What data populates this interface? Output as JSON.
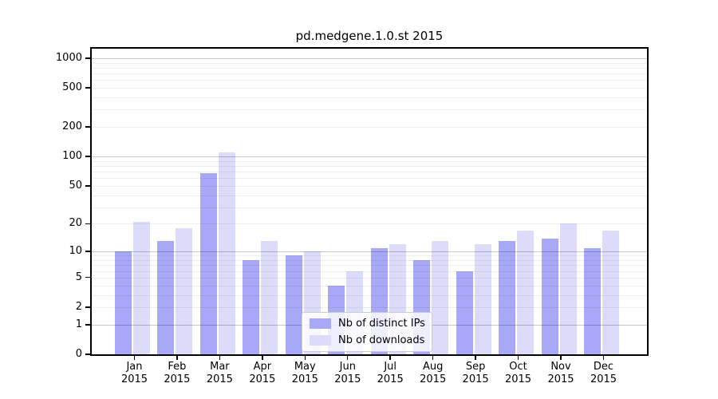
{
  "title": "pd.medgene.1.0.st 2015",
  "chart_data": {
    "type": "bar",
    "title": "pd.medgene.1.0.st 2015",
    "x_year": "2015",
    "x_months": [
      "Jan",
      "Feb",
      "Mar",
      "Apr",
      "May",
      "Jun",
      "Jul",
      "Aug",
      "Sep",
      "Oct",
      "Nov",
      "Dec"
    ],
    "categories": [
      "Jan 2015",
      "Feb 2015",
      "Mar 2015",
      "Apr 2015",
      "May 2015",
      "Jun 2015",
      "Jul 2015",
      "Aug 2015",
      "Sep 2015",
      "Oct 2015",
      "Nov 2015",
      "Dec 2015"
    ],
    "series": [
      {
        "name": "Nb of distinct IPs",
        "color": "#a8a8f8",
        "values": [
          10,
          13,
          67,
          8,
          9,
          4,
          11,
          8,
          6,
          13,
          14,
          11
        ]
      },
      {
        "name": "Nb of downloads",
        "color": "#dcdcfa",
        "values": [
          21,
          18,
          110,
          13,
          10,
          6,
          12,
          13,
          12,
          17,
          20,
          17
        ]
      }
    ],
    "xlabel": "",
    "ylabel": "",
    "yscale": "log1p",
    "ylim": [
      0,
      1250
    ],
    "ytick_values": [
      0,
      1,
      2,
      5,
      10,
      20,
      50,
      100,
      200,
      500,
      1000
    ],
    "grid": true,
    "grid_major_values": [
      1,
      10,
      100,
      1000
    ],
    "legend_position": "lower center"
  },
  "colors": {
    "distinct_ips": "#a8a8f8",
    "downloads": "#dcdcfa",
    "spine": "#000000",
    "background": "#ffffff"
  }
}
